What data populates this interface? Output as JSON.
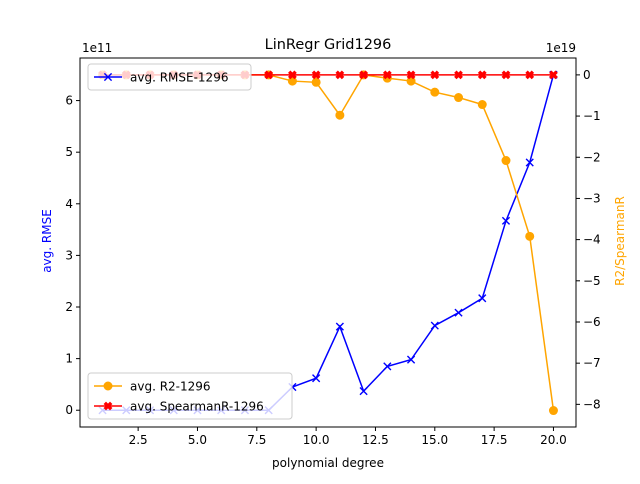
{
  "chart_data": {
    "type": "line",
    "title": "LinRegr Grid1296",
    "xlabel": "polynomial degree",
    "ylabel_left": "avg. RMSE",
    "ylabel_right": "R2/SpearmanR",
    "left_exponent": "1e11",
    "right_exponent": "1e19",
    "xlim": [
      0.05,
      20.95
    ],
    "ylim_left": [
      -0.325,
      6.825
    ],
    "ylim_right": [
      -8.55,
      0.41
    ],
    "xticks": [
      2.5,
      5.0,
      7.5,
      10.0,
      12.5,
      15.0,
      17.5,
      20.0
    ],
    "xtick_labels": [
      "2.5",
      "5.0",
      "7.5",
      "10.0",
      "12.5",
      "15.0",
      "17.5",
      "20.0"
    ],
    "yticks_left": [
      0,
      1,
      2,
      3,
      4,
      5,
      6
    ],
    "ytick_labels_left": [
      "0",
      "1",
      "2",
      "3",
      "4",
      "5",
      "6"
    ],
    "yticks_right": [
      0,
      -1,
      -2,
      -3,
      -4,
      -5,
      -6,
      -7,
      -8
    ],
    "ytick_labels_right": [
      "0",
      "−1",
      "−2",
      "−3",
      "−4",
      "−5",
      "−6",
      "−7",
      "−8"
    ],
    "x": [
      1,
      2,
      3,
      4,
      5,
      6,
      7,
      8,
      9,
      10,
      11,
      12,
      13,
      14,
      15,
      16,
      17,
      18,
      19,
      20
    ],
    "colors": {
      "rmse": "#0000ff",
      "r2": "#ffa500",
      "spearman": "#ff0000",
      "label_left": "#0000ff",
      "label_right": "#ffa500"
    },
    "series": [
      {
        "name": "avg. RMSE-1296",
        "axis": "left",
        "marker": "x",
        "values": [
          0.0,
          0.0,
          0.0,
          0.0,
          0.0,
          0.0,
          0.0,
          0.0,
          0.45,
          0.62,
          1.62,
          0.37,
          0.85,
          0.98,
          1.64,
          1.89,
          2.17,
          3.67,
          4.8,
          6.5
        ]
      },
      {
        "name": "avg. R2-1296",
        "axis": "right",
        "marker": "o",
        "values": [
          0.0,
          0.0,
          0.0,
          0.0,
          0.0,
          0.0,
          0.0,
          0.0,
          -0.15,
          -0.18,
          -0.98,
          0.0,
          -0.08,
          -0.15,
          -0.42,
          -0.55,
          -0.72,
          -2.08,
          -3.92,
          -8.15
        ]
      },
      {
        "name": "avg. SpearmanR-1296",
        "axis": "right",
        "marker": "X",
        "values": [
          0,
          0,
          0,
          0,
          0,
          0,
          0,
          0,
          0,
          0,
          0,
          0,
          0,
          0,
          0,
          0,
          0,
          0,
          0,
          0
        ]
      }
    ],
    "legends": [
      {
        "position": "upper-left",
        "entries": [
          "avg. RMSE-1296"
        ]
      },
      {
        "position": "lower-left",
        "entries": [
          "avg. R2-1296",
          "avg. SpearmanR-1296"
        ]
      }
    ]
  }
}
